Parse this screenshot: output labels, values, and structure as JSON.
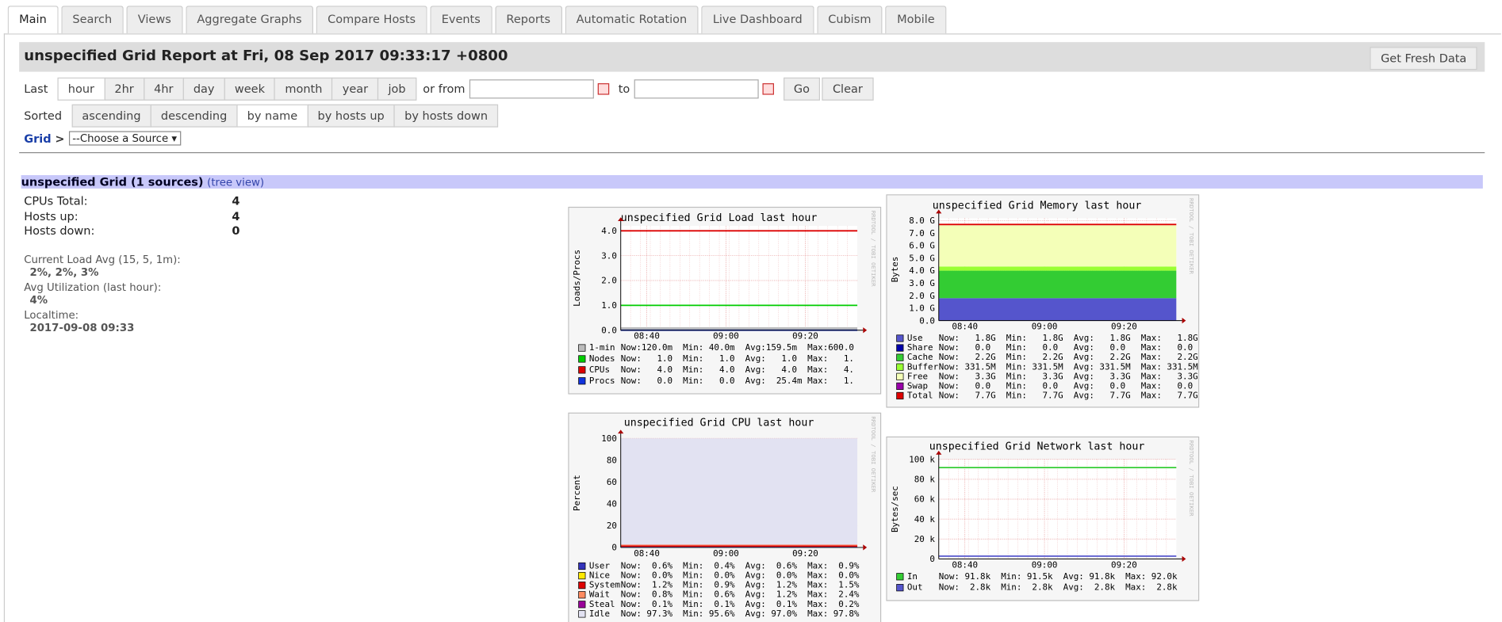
{
  "tabs": {
    "items": [
      "Main",
      "Search",
      "Views",
      "Aggregate Graphs",
      "Compare Hosts",
      "Events",
      "Reports",
      "Automatic Rotation",
      "Live Dashboard",
      "Cubism",
      "Mobile"
    ],
    "selected": 0
  },
  "header": {
    "title": "unspecified Grid Report at Fri, 08 Sep 2017 09:33:17 +0800",
    "refresh_button": "Get Fresh Data"
  },
  "range": {
    "label": "Last",
    "options": [
      "hour",
      "2hr",
      "4hr",
      "day",
      "week",
      "month",
      "year",
      "job"
    ],
    "selected": 0,
    "or_from": "or from",
    "to": "to",
    "go": "Go",
    "clear": "Clear"
  },
  "sort": {
    "label": "Sorted",
    "options": [
      "ascending",
      "descending",
      "by name",
      "by hosts up",
      "by hosts down"
    ],
    "selected": 2
  },
  "breadcrumb": {
    "root": "Grid",
    "separator": ">",
    "select": "--Choose a Source"
  },
  "summary": {
    "heading": "unspecified Grid (1 sources)",
    "tree_view": "(tree view)",
    "rows": [
      [
        "CPUs Total:",
        "4"
      ],
      [
        "Hosts up:",
        "4"
      ],
      [
        "Hosts down:",
        "0"
      ]
    ],
    "details": [
      [
        "Current Load Avg (15, 5, 1m):",
        "2%, 2%, 3%"
      ],
      [
        "Avg Utilization (last hour):",
        "4%"
      ],
      [
        "Localtime:",
        "2017-09-08 09:33"
      ]
    ]
  },
  "graphs": [
    {
      "title": "unspecified Grid Load last hour",
      "ylabel": "Loads/Procs",
      "watermark": "RRDTOOL / TOBI OETIKER",
      "ylim": [
        0,
        4.2
      ],
      "yticks": [
        {
          "value": 0,
          "label": "0.0"
        },
        {
          "value": 1,
          "label": "1.0"
        },
        {
          "value": 2,
          "label": "2.0"
        },
        {
          "value": 3,
          "label": "3.0"
        },
        {
          "value": 4,
          "label": "4.0"
        }
      ],
      "xlabels": [
        "08:40",
        "09:00",
        "09:20"
      ],
      "series": [
        {
          "name": "1-min",
          "color": "#bbbbbb",
          "draw": "area",
          "value": 0.12,
          "stats": "Now:120.0m  Min: 40.0m  Avg:159.5m  Max:600.0"
        },
        {
          "name": "Nodes",
          "color": "#00cc00",
          "draw": "line",
          "value": 1,
          "stats": "Now:   1.0  Min:   1.0  Avg:   1.0  Max:   1."
        },
        {
          "name": "CPUs",
          "color": "#dd0000",
          "draw": "line",
          "value": 4,
          "stats": "Now:   4.0  Min:   4.0  Avg:   4.0  Max:   4."
        },
        {
          "name": "Procs",
          "color": "#1133dd",
          "draw": "line",
          "value": 0,
          "stats": "Now:   0.0  Min:   0.0  Avg:  25.4m Max:   1."
        }
      ]
    },
    {
      "title": "unspecified Grid Memory last hour",
      "ylabel": "Bytes",
      "watermark": "RRDTOOL / TOBI OETIKER",
      "ylim": [
        0,
        8200000000
      ],
      "yticks": [
        {
          "value": 0,
          "label": "0.0"
        },
        {
          "value": 1000000000,
          "label": "1.0 G"
        },
        {
          "value": 2000000000,
          "label": "2.0 G"
        },
        {
          "value": 3000000000,
          "label": "3.0 G"
        },
        {
          "value": 4000000000,
          "label": "4.0 G"
        },
        {
          "value": 5000000000,
          "label": "5.0 G"
        },
        {
          "value": 6000000000,
          "label": "6.0 G"
        },
        {
          "value": 7000000000,
          "label": "7.0 G"
        },
        {
          "value": 8000000000,
          "label": "8.0 G"
        }
      ],
      "xlabels": [
        "08:40",
        "09:00",
        "09:20"
      ],
      "series": [
        {
          "name": "Use",
          "color": "#5555cc",
          "draw": "area",
          "value": 1800000000,
          "stats": "Now:   1.8G  Min:   1.8G  Avg:   1.8G  Max:   1.8G"
        },
        {
          "name": "Share",
          "color": "#0000aa",
          "draw": "area",
          "value": 0,
          "stats": "Now:   0.0   Min:   0.0   Avg:   0.0   Max:   0.0"
        },
        {
          "name": "Cache",
          "color": "#33cc33",
          "draw": "area",
          "value": 2200000000,
          "stats": "Now:   2.2G  Min:   2.2G  Avg:   2.2G  Max:   2.2G"
        },
        {
          "name": "Buffer",
          "color": "#99ff33",
          "draw": "area",
          "value": 331500000,
          "stats": "Now: 331.5M  Min: 331.5M  Avg: 331.5M  Max: 331.5M"
        },
        {
          "name": "Free",
          "color": "#f4ffb8",
          "draw": "area",
          "value": 3300000000,
          "stats": "Now:   3.3G  Min:   3.3G  Avg:   3.3G  Max:   3.3G"
        },
        {
          "name": "Swap",
          "color": "#9900aa",
          "draw": "area",
          "value": 0,
          "stats": "Now:   0.0   Min:   0.0   Avg:   0.0   Max:   0.0"
        },
        {
          "name": "Total",
          "color": "#dd0000",
          "draw": "line",
          "value": 7700000000,
          "stats": "Now:   7.7G  Min:   7.7G  Avg:   7.7G  Max:   7.7G"
        }
      ]
    },
    {
      "title": "unspecified Grid CPU last hour",
      "ylabel": "Percent",
      "watermark": "RRDTOOL / TOBI OETIKER",
      "ylim": [
        0,
        100
      ],
      "yticks": [
        0,
        20,
        40,
        60,
        80,
        100
      ],
      "xlabels": [
        "08:40",
        "09:00",
        "09:20"
      ],
      "series": [
        {
          "name": "User",
          "color": "#3333bb",
          "draw": "area",
          "value": 0.6,
          "stats": "Now:  0.6%  Min:  0.4%  Avg:  0.6%  Max:  0.9%"
        },
        {
          "name": "Nice",
          "color": "#ffea00",
          "draw": "area",
          "value": 0,
          "stats": "Now:  0.0%  Min:  0.0%  Avg:  0.0%  Max:  0.0%"
        },
        {
          "name": "System",
          "color": "#dd0000",
          "draw": "area",
          "value": 1.2,
          "stats": "Now:  1.2%  Min:  0.9%  Avg:  1.2%  Max:  1.5%"
        },
        {
          "name": "Wait",
          "color": "#ff8a60",
          "draw": "area",
          "value": 0.8,
          "stats": "Now:  0.8%  Min:  0.6%  Avg:  1.2%  Max:  2.4%"
        },
        {
          "name": "Steal",
          "color": "#990099",
          "draw": "area",
          "value": 0.1,
          "stats": "Now:  0.1%  Min:  0.1%  Avg:  0.1%  Max:  0.2%"
        },
        {
          "name": "Idle",
          "color": "#e2e2f2",
          "draw": "area",
          "value": 97.3,
          "stats": "Now: 97.3%  Min: 95.6%  Avg: 97.0%  Max: 97.8%"
        }
      ]
    },
    {
      "title": "unspecified Grid Network last hour",
      "ylabel": "Bytes/sec",
      "watermark": "RRDTOOL / TOBI OETIKER",
      "ylim": [
        0,
        100000
      ],
      "yticks": [
        0,
        {
          "value": 20000,
          "label": "20 k"
        },
        {
          "value": 40000,
          "label": "40 k"
        },
        {
          "value": 60000,
          "label": "60 k"
        },
        {
          "value": 80000,
          "label": "80 k"
        },
        {
          "value": 100000,
          "label": "100 k"
        }
      ],
      "xlabels": [
        "08:40",
        "09:00",
        "09:20"
      ],
      "series": [
        {
          "name": "In",
          "color": "#33cc33",
          "draw": "line",
          "value": 91800,
          "stats": "Now: 91.8k  Min: 91.5k  Avg: 91.8k  Max: 92.0k"
        },
        {
          "name": "Out",
          "color": "#5555cc",
          "draw": "line",
          "value": 2800,
          "stats": "Now:  2.8k  Min:  2.8k  Avg:  2.8k  Max:  2.8k"
        }
      ]
    }
  ]
}
